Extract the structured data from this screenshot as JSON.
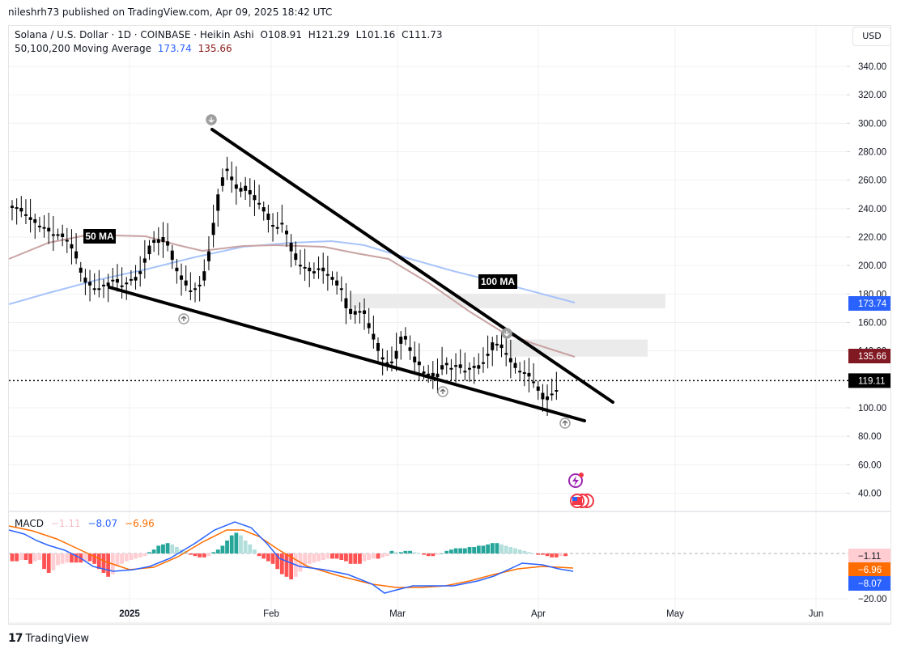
{
  "header": {
    "published": "nileshrh73 published on TradingView.com, Apr 09, 2025 18:42 UTC"
  },
  "legend": {
    "symbol": "Solana / U.S. Dollar · 1D · COINBASE · Heikin Ashi",
    "open": "O108.91",
    "high": "H121.29",
    "low": "L101.16",
    "close": "C111.73",
    "ma_label": "50,100,200 Moving Average",
    "ma_value_1": "173.74",
    "ma_value_2": "135.66"
  },
  "currency_button": "USD",
  "macd_legend": {
    "label": "MACD",
    "histogram": "−1.11",
    "macd": "−8.07",
    "signal": "−6.96"
  },
  "footer": {
    "logo": "17",
    "brand": "TradingView"
  },
  "annotations": {
    "ma50_label": "50 MA",
    "ma100_label": "100 MA"
  },
  "colors": {
    "ma_blue": "#a8c4fb",
    "ma_red": "#c9a3a3",
    "macd_line": "#2962ff",
    "signal_line": "#ff6d00",
    "hist_pos_strong": "#26a69a",
    "hist_pos_weak": "#b2dfdb",
    "hist_neg_strong": "#ff5252",
    "hist_neg_weak": "#ffcdd2",
    "price_label": "#000000",
    "ma1_label": "#2962ff",
    "ma2_label": "#801922"
  },
  "chart_data": [
    {
      "type": "candlestick",
      "title": "Solana / U.S. Dollar · 1D · COINBASE · Heikin Ashi",
      "y_axis": {
        "ticks": [
          "340.00",
          "320.00",
          "300.00",
          "280.00",
          "260.00",
          "240.00",
          "220.00",
          "200.00",
          "180.00",
          "160.00",
          "140.00",
          "100.00",
          "80.00",
          "60.00",
          "40.00"
        ],
        "range": [
          30,
          350
        ]
      },
      "x_axis": {
        "ticks": [
          "2025",
          "Feb",
          "Mar",
          "Apr",
          "May",
          "Jun"
        ]
      },
      "price_labels": [
        {
          "value": "173.74",
          "role": "ma100",
          "color": "#2962ff"
        },
        {
          "value": "135.66",
          "role": "ma50",
          "color": "#801922"
        },
        {
          "value": "119.11",
          "role": "last_price",
          "color": "#000000"
        }
      ],
      "last_price": 119.11,
      "approx_closes": [
        242,
        240,
        238,
        236,
        232,
        230,
        228,
        226,
        224,
        222,
        222,
        220,
        218,
        212,
        205,
        195,
        188,
        186,
        184,
        184,
        186,
        188,
        190,
        188,
        186,
        188,
        190,
        192,
        196,
        205,
        214,
        218,
        216,
        220,
        214,
        204,
        196,
        190,
        186,
        182,
        184,
        186,
        196,
        210,
        230,
        250,
        262,
        268,
        260,
        254,
        252,
        256,
        250,
        246,
        244,
        238,
        232,
        228,
        226,
        230,
        222,
        210,
        204,
        200,
        198,
        196,
        196,
        198,
        196,
        194,
        190,
        186,
        184,
        170,
        166,
        168,
        168,
        166,
        156,
        148,
        140,
        134,
        130,
        132,
        140,
        150,
        148,
        140,
        132,
        130,
        124,
        124,
        122,
        124,
        130,
        130,
        128,
        130,
        128,
        126,
        128,
        128,
        130,
        132,
        138,
        146,
        144,
        142,
        138,
        132,
        128,
        126,
        124,
        122,
        118,
        112,
        106,
        108,
        110,
        112
      ],
      "moving_averages": [
        {
          "name": "50 MA",
          "color": "#c9a3a3",
          "last": 135.66
        },
        {
          "name": "100 MA",
          "color": "#a8c4fb",
          "last": 173.74
        }
      ],
      "trendlines": [
        {
          "name": "upper wedge",
          "from": [
            262,
            293
          ],
          "to": [
            757,
            105
          ]
        },
        {
          "name": "lower wedge",
          "from": [
            135,
            184
          ],
          "to": [
            722,
            92
          ]
        }
      ],
      "zones": [
        {
          "name": "resistance zone 1",
          "y_range": [
            170,
            180
          ],
          "x_range": [
            432,
            822
          ]
        },
        {
          "name": "resistance zone 2",
          "y_range": [
            136,
            148
          ],
          "x_range": [
            625,
            800
          ]
        }
      ]
    },
    {
      "type": "line+bar",
      "title": "MACD",
      "values": {
        "histogram": -1.11,
        "macd": -8.07,
        "signal": -6.96
      },
      "y_axis": {
        "ticks": [
          "-20.00"
        ]
      },
      "price_labels": [
        {
          "value": "−1.11",
          "color": "#ffcdd2"
        },
        {
          "value": "−6.96",
          "color": "#ff6d00"
        },
        {
          "value": "−8.07",
          "color": "#2962ff"
        }
      ]
    }
  ]
}
